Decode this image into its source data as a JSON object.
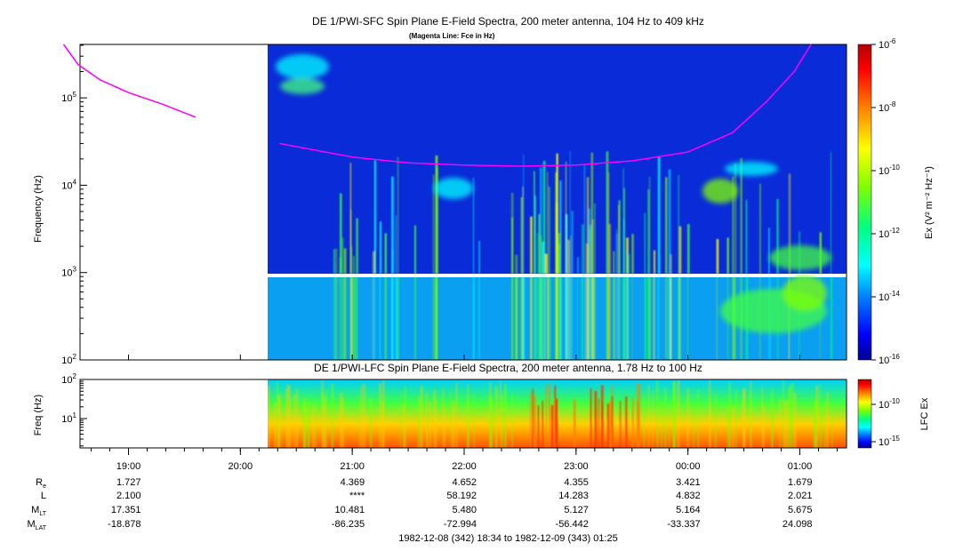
{
  "top_panel": {
    "title": "DE 1/PWI-SFC  Spin Plane E-Field Spectra, 200 meter antenna, 104 Hz to 409 kHz",
    "subtitle": "(Magenta Line: Fce in Hz)",
    "ylabel": "Frequency (Hz)",
    "colorbar_label": "Ex (V² m⁻² Hz⁻¹)"
  },
  "bottom_panel": {
    "title": "DE 1/PWI-LFC  Spin Plane E-Field Spectra, 200 meter antenna, 1.78 Hz to 100 Hz",
    "ylabel": "Freq (Hz)",
    "colorbar_label": "LFC Ex"
  },
  "colors": {
    "colormap": [
      "#000090",
      "#0000ff",
      "#0080ff",
      "#00ffff",
      "#00ff80",
      "#80ff00",
      "#ffff00",
      "#ff8000",
      "#ff0000",
      "#b00000"
    ],
    "fce_line": "#ff00ff",
    "background_fill": "#0a2bd8"
  },
  "chart_data": [
    {
      "type": "heatmap",
      "title": "DE 1/PWI-SFC  Spin Plane E-Field Spectra, 200 meter antenna, 104 Hz to 409 kHz",
      "subtitle": "(Magenta Line: Fce in Hz)",
      "ylabel": "Frequency (Hz)",
      "yscale": "log",
      "ylim": [
        100,
        409000
      ],
      "y_ticks": [
        {
          "value": 100,
          "base": "10",
          "exp": "2"
        },
        {
          "value": 1000,
          "base": "10",
          "exp": "3"
        },
        {
          "value": 10000,
          "base": "10",
          "exp": "4"
        },
        {
          "value": 100000,
          "base": "10",
          "exp": "5"
        }
      ],
      "colorbar": {
        "label": "Ex (V² m⁻² Hz⁻¹)",
        "scale": "log",
        "range": [
          1e-16,
          1e-06
        ],
        "ticks": [
          {
            "value": 1e-06,
            "base": "10",
            "exp": "-6"
          },
          {
            "value": 1e-08,
            "base": "10",
            "exp": "-8"
          },
          {
            "value": 1e-10,
            "base": "10",
            "exp": "-10"
          },
          {
            "value": 1e-12,
            "base": "10",
            "exp": "-12"
          },
          {
            "value": 1e-14,
            "base": "10",
            "exp": "-14"
          },
          {
            "value": 1e-16,
            "base": "10",
            "exp": "-16"
          }
        ]
      },
      "fce_line": [
        {
          "hours": 18.42,
          "hz": 409000
        },
        {
          "hours": 18.55,
          "hz": 240000
        },
        {
          "hours": 18.75,
          "hz": 160000
        },
        {
          "hours": 19.0,
          "hz": 115000
        },
        {
          "hours": 19.3,
          "hz": 85000
        },
        {
          "hours": 19.6,
          "hz": 60000
        },
        {
          "hours": 20.35,
          "hz": 30000
        },
        {
          "hours": 21.0,
          "hz": 21000
        },
        {
          "hours": 21.5,
          "hz": 18000
        },
        {
          "hours": 22.0,
          "hz": 17000
        },
        {
          "hours": 22.5,
          "hz": 16500
        },
        {
          "hours": 23.0,
          "hz": 17000
        },
        {
          "hours": 23.5,
          "hz": 19000
        },
        {
          "hours": 24.0,
          "hz": 24000
        },
        {
          "hours": 24.4,
          "hz": 40000
        },
        {
          "hours": 24.7,
          "hz": 90000
        },
        {
          "hours": 24.95,
          "hz": 200000
        },
        {
          "hours": 25.1,
          "hz": 409000
        }
      ]
    },
    {
      "type": "heatmap",
      "title": "DE 1/PWI-LFC  Spin Plane E-Field Spectra, 200 meter antenna, 1.78 Hz to 100 Hz",
      "ylabel": "Freq (Hz)",
      "yscale": "log",
      "ylim": [
        1.78,
        100
      ],
      "y_ticks": [
        {
          "value": 10,
          "base": "10",
          "exp": "1"
        },
        {
          "value": 100,
          "base": "10",
          "exp": "2"
        }
      ],
      "colorbar": {
        "label": "LFC Ex",
        "scale": "log",
        "ticks": [
          {
            "value": 1e-10,
            "base": "10",
            "exp": "-10"
          },
          {
            "value": 1e-15,
            "base": "10",
            "exp": "-15"
          }
        ]
      }
    }
  ],
  "x_axis": {
    "range_hours": [
      18.567,
      25.417
    ],
    "ticks": [
      {
        "hours": 19,
        "label": "19:00"
      },
      {
        "hours": 20,
        "label": "20:00"
      },
      {
        "hours": 21,
        "label": "21:00"
      },
      {
        "hours": 22,
        "label": "22:00"
      },
      {
        "hours": 23,
        "label": "23:00"
      },
      {
        "hours": 24,
        "label": "00:00"
      },
      {
        "hours": 25,
        "label": "01:00"
      }
    ],
    "row_labels": [
      {
        "base": "R",
        "sub": "e"
      },
      {
        "base": "L",
        "sub": ""
      },
      {
        "base": "M",
        "sub": "LT"
      },
      {
        "base": "M",
        "sub": "LAT"
      }
    ],
    "ephemeris": [
      [
        "1.727",
        "",
        "4.369",
        "4.652",
        "4.355",
        "3.421",
        "1.679"
      ],
      [
        "2.100",
        "",
        "****",
        "58.192",
        "14.283",
        "4.832",
        "2.021"
      ],
      [
        "17.351",
        "",
        "10.481",
        "5.480",
        "5.127",
        "5.164",
        "5.675"
      ],
      [
        "-18.878",
        "",
        "-86.235",
        "-72.994",
        "-56.442",
        "-33.337",
        "24.098"
      ]
    ],
    "date_range": "1982-12-08 (342) 18:34 to 1982-12-09 (343) 01:25"
  }
}
